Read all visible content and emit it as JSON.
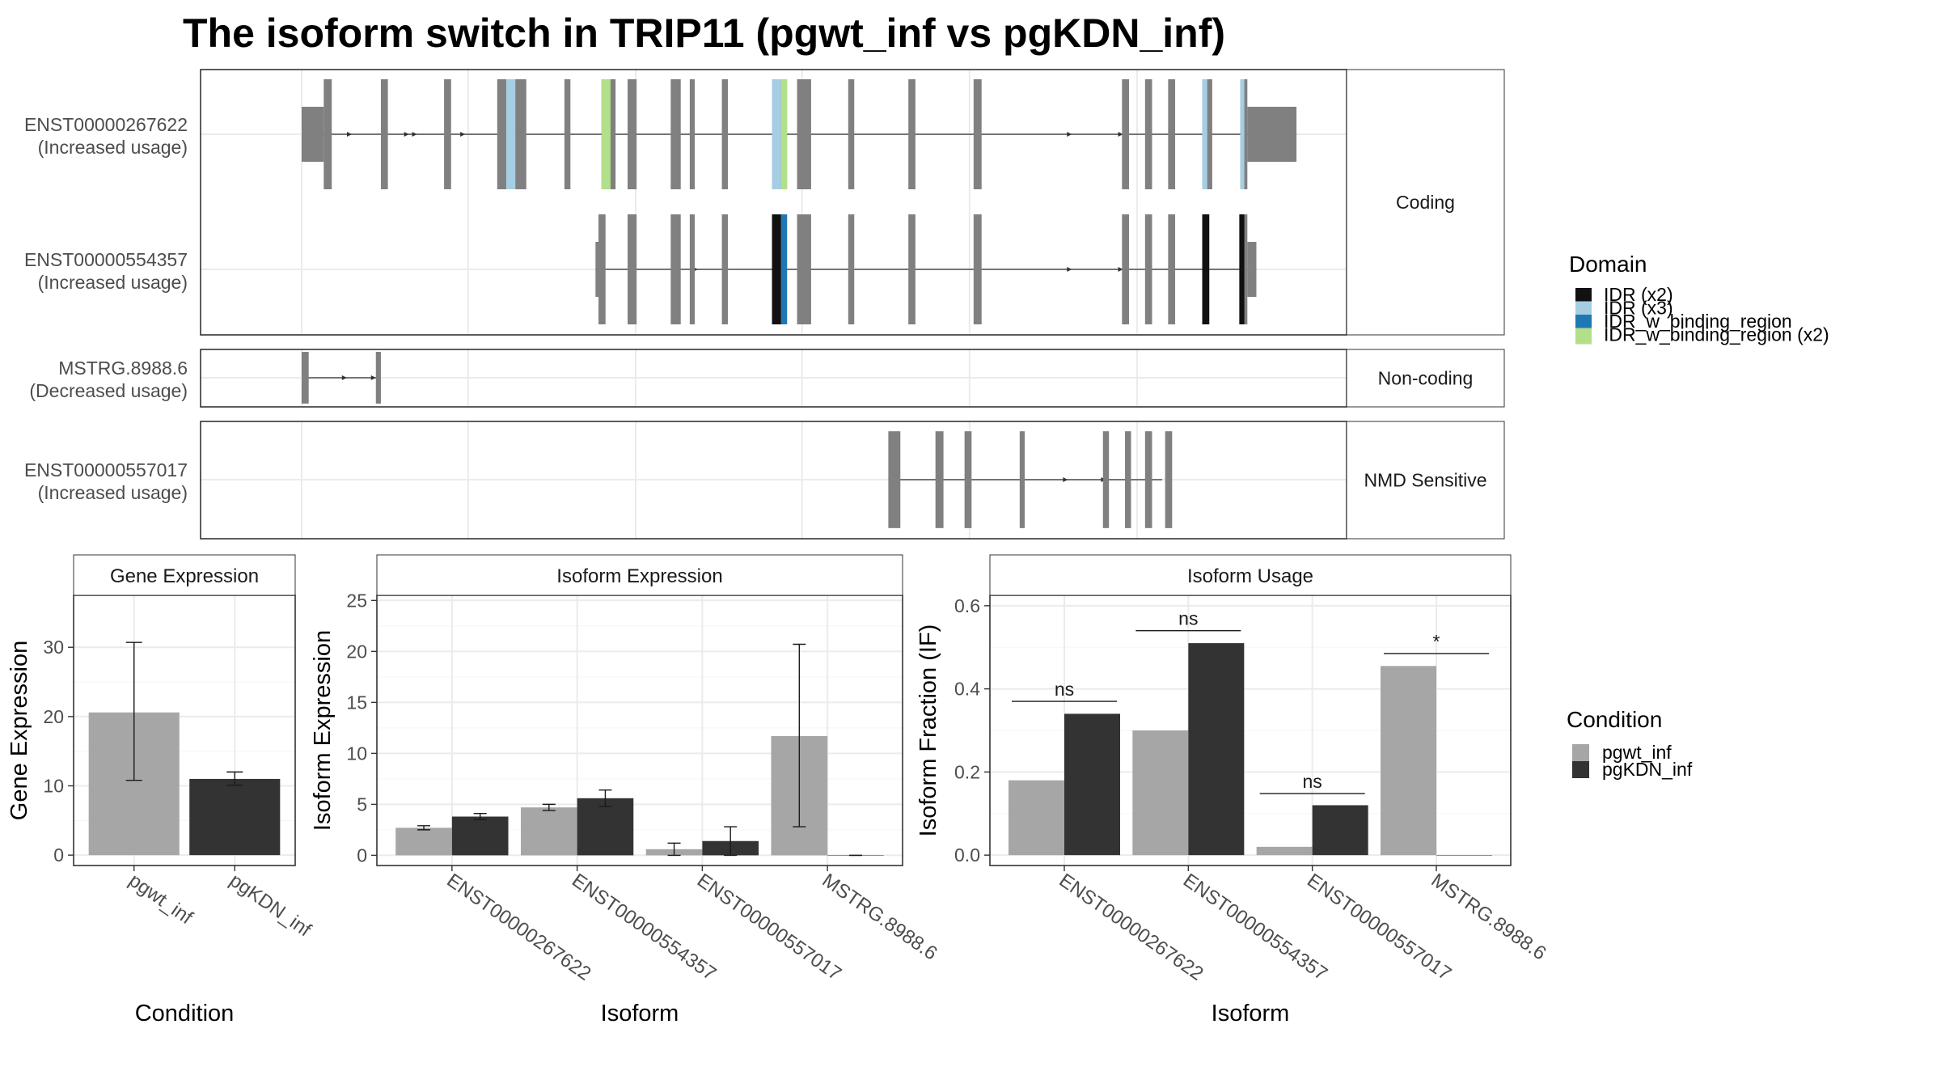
{
  "title": "The isoform switch in TRIP11 (pgwt_inf vs pgKDN_inf)",
  "colors": {
    "exon": "#808080",
    "intron": "#4d4d4d",
    "panel_border": "#333333",
    "strip_bg": "#ffffff",
    "grid": "#ebebeb",
    "pgwt_inf": "#a6a6a6",
    "pgKDN_inf": "#333333"
  },
  "domain_legend": {
    "title": "Domain",
    "items": [
      {
        "label": "IDR (x2)",
        "color": "#111111"
      },
      {
        "label": "IDR (x3)",
        "color": "#a6cee3"
      },
      {
        "label": "IDR_w_binding_region",
        "color": "#1f78b4"
      },
      {
        "label": "IDR_w_binding_region (x2)",
        "color": "#b2df8a"
      }
    ]
  },
  "condition_legend": {
    "title": "Condition",
    "items": [
      {
        "label": "pgwt_inf",
        "color": "#a6a6a6"
      },
      {
        "label": "pgKDN_inf",
        "color": "#333333"
      }
    ]
  },
  "transcript_groups": [
    {
      "label": "Coding",
      "transcripts": [
        {
          "id": "ENST00000267622",
          "usage": "(Increased usage)"
        },
        {
          "id": "ENST00000554357",
          "usage": "(Increased usage)"
        }
      ]
    },
    {
      "label": "Non-coding",
      "transcripts": [
        {
          "id": "MSTRG.8988.6",
          "usage": "(Decreased usage)"
        }
      ]
    },
    {
      "label": "NMD Sensitive",
      "transcripts": [
        {
          "id": "ENST00000557017",
          "usage": "(Increased usage)"
        }
      ]
    }
  ],
  "chart_data": [
    {
      "type": "bar",
      "title": "Gene Expression",
      "xlabel": "Condition",
      "ylabel": "Gene Expression",
      "categories": [
        "pgwt_inf",
        "pgKDN_inf"
      ],
      "values": [
        20.6,
        11.0
      ],
      "errors": [
        [
          10.8,
          30.7
        ],
        [
          10.1,
          12.0
        ]
      ],
      "colors": [
        "#a6a6a6",
        "#333333"
      ],
      "ylim": [
        -1.5,
        37.5
      ],
      "yticks": [
        0,
        10,
        20,
        30
      ]
    },
    {
      "type": "bar",
      "title": "Isoform Expression",
      "xlabel": "Isoform",
      "ylabel": "Isoform Expression",
      "categories": [
        "ENST00000267622",
        "ENST00000554357",
        "ENST00000557017",
        "MSTRG.8988.6"
      ],
      "series": [
        {
          "name": "pgwt_inf",
          "color": "#a6a6a6",
          "values": [
            2.7,
            4.7,
            0.6,
            11.7
          ],
          "errors": [
            [
              2.5,
              2.9
            ],
            [
              4.4,
              5.0
            ],
            [
              0.0,
              1.2
            ],
            [
              2.8,
              20.7
            ]
          ]
        },
        {
          "name": "pgKDN_inf",
          "color": "#333333",
          "values": [
            3.8,
            5.6,
            1.4,
            0.0
          ],
          "errors": [
            [
              3.5,
              4.1
            ],
            [
              4.8,
              6.4
            ],
            [
              0.0,
              2.8
            ],
            [
              0.0,
              0.0
            ]
          ]
        }
      ],
      "ylim": [
        -1.0,
        25.5
      ],
      "yticks": [
        0,
        5,
        10,
        15,
        20,
        25
      ]
    },
    {
      "type": "bar",
      "title": "Isoform Usage",
      "xlabel": "Isoform",
      "ylabel": "Isoform Fraction (IF)",
      "categories": [
        "ENST00000267622",
        "ENST00000554357",
        "ENST00000557017",
        "MSTRG.8988.6"
      ],
      "series": [
        {
          "name": "pgwt_inf",
          "color": "#a6a6a6",
          "values": [
            0.18,
            0.3,
            0.02,
            0.455
          ]
        },
        {
          "name": "pgKDN_inf",
          "color": "#333333",
          "values": [
            0.34,
            0.51,
            0.12,
            0.0
          ]
        }
      ],
      "significance": [
        {
          "category": 0,
          "label": "ns",
          "y": 0.37
        },
        {
          "category": 1,
          "label": "ns",
          "y": 0.54
        },
        {
          "category": 2,
          "label": "ns",
          "y": 0.148
        },
        {
          "category": 3,
          "label": "*",
          "y": 0.485
        }
      ],
      "ylim": [
        -0.025,
        0.625
      ],
      "yticks": [
        0.0,
        0.2,
        0.4,
        0.6
      ],
      "ytick_labels": [
        "0.0",
        "0.2",
        "0.4",
        "0.6"
      ]
    }
  ],
  "structure_tracks": {
    "x_range": [
      0,
      1000
    ],
    "gridlines": [
      50,
      216,
      383,
      549,
      716,
      883
    ],
    "tracks": [
      {
        "id": "ENST00000267622",
        "start": 50,
        "end": 1042,
        "exons": [
          [
            50,
            72
          ],
          [
            72,
            80
          ],
          [
            129,
            136
          ],
          [
            192,
            199
          ],
          [
            245,
            254
          ],
          [
            263,
            274
          ],
          [
            312,
            318
          ],
          [
            349,
            363
          ],
          [
            375,
            384
          ],
          [
            418,
            428
          ],
          [
            437,
            442
          ],
          [
            469,
            475
          ],
          [
            519,
            534
          ],
          [
            544,
            558
          ],
          [
            595,
            601
          ],
          [
            655,
            662
          ],
          [
            720,
            728
          ],
          [
            868,
            875
          ],
          [
            891,
            898
          ],
          [
            914,
            921
          ],
          [
            948,
            958
          ],
          [
            986,
            993
          ],
          [
            993,
            1042
          ]
        ],
        "utr": [
          [
            50,
            72
          ],
          [
            993,
            1042
          ]
        ],
        "domains": [
          [
            254,
            263,
            "#a6cee3"
          ],
          [
            349,
            358,
            "#b2df8a"
          ],
          [
            519,
            528,
            "#a6cee3"
          ],
          [
            528,
            534,
            "#b2df8a"
          ],
          [
            948,
            953,
            "#a6cee3"
          ],
          [
            986,
            990,
            "#a6cee3"
          ]
        ],
        "arrows": [
          100,
          157,
          165,
          213,
          818,
          869
        ]
      },
      {
        "id": "ENST00000554357",
        "start": 343,
        "end": 1002,
        "exons": [
          [
            343,
            346
          ],
          [
            346,
            353
          ],
          [
            375,
            384
          ],
          [
            418,
            428
          ],
          [
            437,
            442
          ],
          [
            469,
            475
          ],
          [
            519,
            534
          ],
          [
            544,
            558
          ],
          [
            595,
            601
          ],
          [
            655,
            662
          ],
          [
            720,
            728
          ],
          [
            868,
            875
          ],
          [
            891,
            898
          ],
          [
            914,
            921
          ],
          [
            948,
            955
          ],
          [
            985,
            993
          ],
          [
            993,
            1002
          ]
        ],
        "utr": [
          [
            343,
            346
          ],
          [
            993,
            1002
          ]
        ],
        "domains": [
          [
            519,
            528,
            "#111111"
          ],
          [
            528,
            534,
            "#1f78b4"
          ],
          [
            948,
            955,
            "#111111"
          ],
          [
            985,
            990,
            "#111111"
          ]
        ],
        "arrows": [
          445,
          475,
          818,
          869
        ]
      },
      {
        "id": "MSTRG.8988.6",
        "start": 50,
        "end": 129,
        "exons": [
          [
            50,
            57
          ],
          [
            124,
            129
          ]
        ],
        "utr": [],
        "domains": [],
        "arrows": [
          95,
          124
        ]
      },
      {
        "id": "ENST00000557017",
        "start": 635,
        "end": 908,
        "exons": [
          [
            635,
            647
          ],
          [
            682,
            690
          ],
          [
            711,
            718
          ],
          [
            766,
            771
          ],
          [
            849,
            855
          ],
          [
            871,
            877
          ],
          [
            891,
            898
          ],
          [
            911,
            918
          ]
        ],
        "utr": [
          [
            635,
            640
          ]
        ],
        "domains": [],
        "arrows": [
          814,
          852
        ]
      }
    ]
  }
}
